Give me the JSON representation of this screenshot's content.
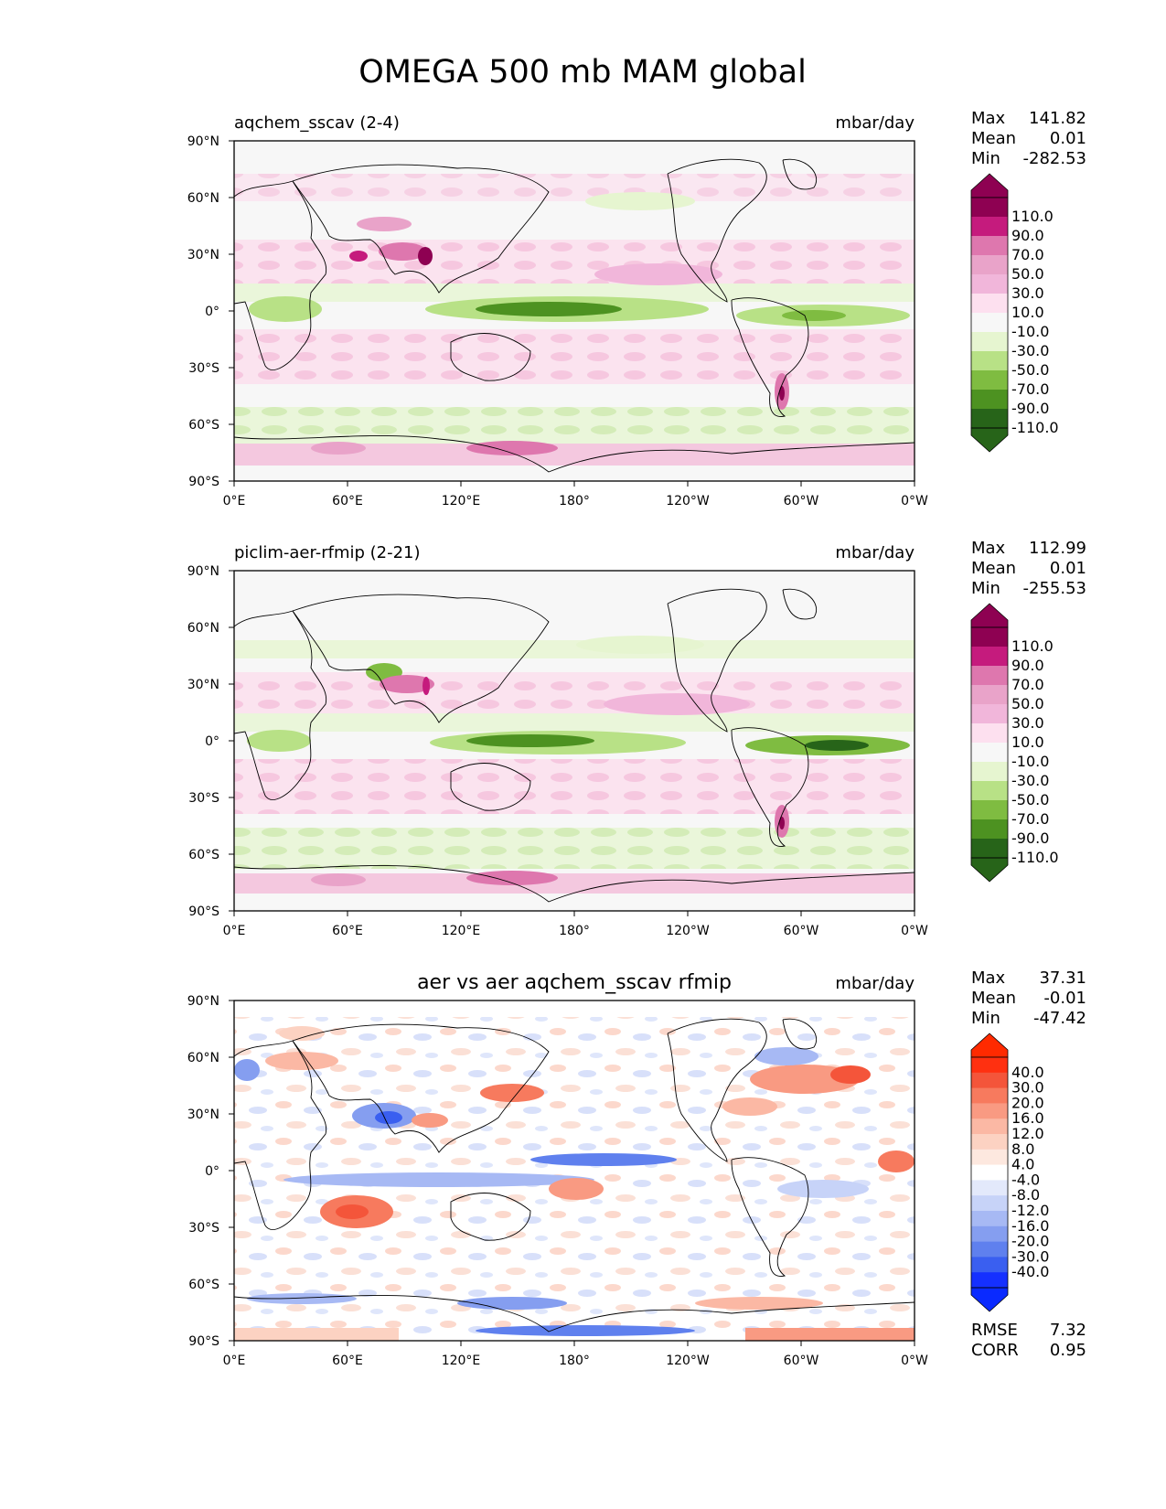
{
  "title": "OMEGA 500 mb MAM global",
  "axes": {
    "y_ticks": [
      "90°N",
      "60°N",
      "30°N",
      "0°",
      "30°S",
      "60°S",
      "90°S"
    ],
    "x_ticks": [
      "0°E",
      "60°E",
      "120°E",
      "180°",
      "120°W",
      "60°W",
      "0°W"
    ]
  },
  "chart_data": [
    {
      "type": "heatmap",
      "title": "aqchem_sscav (2-4)",
      "units": "mbar/day",
      "stats": {
        "max_label": "Max",
        "max": "141.82",
        "mean_label": "Mean",
        "mean": "0.01",
        "min_label": "Min",
        "min": "-282.53"
      },
      "colorbar": {
        "labels": [
          "110.0",
          "90.0",
          "70.0",
          "50.0",
          "30.0",
          "10.0",
          "-10.0",
          "-30.0",
          "-50.0",
          "-70.0",
          "-90.0",
          "-110.0"
        ],
        "colors": [
          "#8e0152",
          "#c51b7d",
          "#de77ae",
          "#e9a3c9",
          "#f1b6da",
          "#fde0ef",
          "#f7f7f7",
          "#e6f5d0",
          "#b8e186",
          "#7fbc41",
          "#4d9221",
          "#276419"
        ],
        "over_color": "#8e0152",
        "under_color": "#276419"
      }
    },
    {
      "type": "heatmap",
      "title": "piclim-aer-rfmip (2-21)",
      "units": "mbar/day",
      "stats": {
        "max_label": "Max",
        "max": "112.99",
        "mean_label": "Mean",
        "mean": "0.01",
        "min_label": "Min",
        "min": "-255.53"
      },
      "colorbar": {
        "labels": [
          "110.0",
          "90.0",
          "70.0",
          "50.0",
          "30.0",
          "10.0",
          "-10.0",
          "-30.0",
          "-50.0",
          "-70.0",
          "-90.0",
          "-110.0"
        ],
        "colors": [
          "#8e0152",
          "#c51b7d",
          "#de77ae",
          "#e9a3c9",
          "#f1b6da",
          "#fde0ef",
          "#f7f7f7",
          "#e6f5d0",
          "#b8e186",
          "#7fbc41",
          "#4d9221",
          "#276419"
        ],
        "over_color": "#8e0152",
        "under_color": "#276419"
      }
    },
    {
      "type": "heatmap",
      "title": "aer vs aer aqchem_sscav rfmip",
      "units": "mbar/day",
      "stats": {
        "max_label": "Max",
        "max": "37.31",
        "mean_label": "Mean",
        "mean": "-0.01",
        "min_label": "Min",
        "min": "-47.42"
      },
      "colorbar": {
        "labels": [
          "40.0",
          "30.0",
          "20.0",
          "16.0",
          "12.0",
          "8.0",
          "4.0",
          "-4.0",
          "-8.0",
          "-12.0",
          "-16.0",
          "-20.0",
          "-30.0",
          "-40.0"
        ],
        "colors": [
          "#ff3010",
          "#f4553a",
          "#f77a5e",
          "#f99a82",
          "#fbb8a4",
          "#fcd2c2",
          "#fde8df",
          "#ffffff",
          "#e3e9fb",
          "#c7d3f8",
          "#a7b9f4",
          "#859ef0",
          "#5f80ee",
          "#3a5ff0",
          "#1530ff"
        ],
        "over_color": "#ff2a00",
        "under_color": "#0a2aff"
      },
      "rmse_label": "RMSE",
      "rmse": "7.32",
      "corr_label": "CORR",
      "corr": "0.95"
    }
  ]
}
